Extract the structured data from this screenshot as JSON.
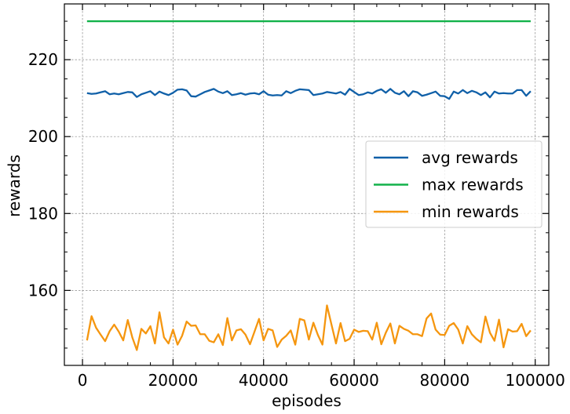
{
  "chart_data": {
    "type": "line",
    "xlabel": "episodes",
    "ylabel": "rewards",
    "xlim": [
      -4000,
      103000
    ],
    "ylim": [
      140.5,
      234.5
    ],
    "xticks": [
      0,
      20000,
      40000,
      60000,
      80000,
      100000
    ],
    "xtick_labels": [
      "0",
      "20000",
      "40000",
      "60000",
      "80000",
      "100000"
    ],
    "yticks": [
      160,
      180,
      200,
      220
    ],
    "ytick_labels": [
      "160",
      "180",
      "200",
      "220"
    ],
    "grid": true,
    "legend_position": "right",
    "x": [
      1000,
      2000,
      3000,
      4000,
      5000,
      6000,
      7000,
      8000,
      9000,
      10000,
      11000,
      12000,
      13000,
      14000,
      15000,
      16000,
      17000,
      18000,
      19000,
      20000,
      21000,
      22000,
      23000,
      24000,
      25000,
      26000,
      27000,
      28000,
      29000,
      30000,
      31000,
      32000,
      33000,
      34000,
      35000,
      36000,
      37000,
      38000,
      39000,
      40000,
      41000,
      42000,
      43000,
      44000,
      45000,
      46000,
      47000,
      48000,
      49000,
      50000,
      51000,
      52000,
      53000,
      54000,
      55000,
      56000,
      57000,
      58000,
      59000,
      60000,
      61000,
      62000,
      63000,
      64000,
      65000,
      66000,
      67000,
      68000,
      69000,
      70000,
      71000,
      72000,
      73000,
      74000,
      75000,
      76000,
      77000,
      78000,
      79000,
      80000,
      81000,
      82000,
      83000,
      84000,
      85000,
      86000,
      87000,
      88000,
      89000,
      90000,
      91000,
      92000,
      93000,
      94000,
      95000,
      96000,
      97000,
      98000,
      99000
    ],
    "series": [
      {
        "name": "avg rewards",
        "color": "#1060a8",
        "values": [
          211.3,
          211.1,
          211.2,
          211.5,
          211.8,
          211.0,
          211.2,
          211.0,
          211.3,
          211.6,
          211.5,
          210.3,
          211.0,
          211.4,
          211.8,
          210.8,
          211.7,
          211.2,
          210.8,
          211.4,
          212.2,
          212.3,
          212.0,
          210.5,
          210.4,
          211.0,
          211.6,
          212.0,
          212.4,
          211.7,
          211.3,
          211.8,
          210.8,
          211.0,
          211.3,
          210.9,
          211.2,
          211.3,
          211.0,
          211.8,
          210.9,
          210.7,
          210.8,
          210.7,
          211.8,
          211.3,
          211.9,
          212.3,
          212.2,
          212.1,
          210.8,
          211.0,
          211.2,
          211.6,
          211.4,
          211.2,
          211.6,
          210.9,
          212.4,
          211.6,
          210.8,
          211.0,
          211.5,
          211.2,
          211.9,
          212.3,
          211.4,
          212.4,
          211.4,
          211.0,
          211.8,
          210.5,
          211.8,
          211.5,
          210.6,
          210.9,
          211.3,
          211.7,
          210.6,
          210.5,
          209.8,
          211.7,
          211.2,
          212.1,
          211.3,
          211.9,
          211.5,
          210.8,
          211.5,
          210.2,
          211.7,
          211.2,
          211.3,
          211.2,
          211.2,
          212.1,
          212.1,
          210.6,
          211.8
        ]
      },
      {
        "name": "max rewards",
        "color": "#12b24a",
        "values": [
          230,
          230,
          230,
          230,
          230,
          230,
          230,
          230,
          230,
          230,
          230,
          230,
          230,
          230,
          230,
          230,
          230,
          230,
          230,
          230,
          230,
          230,
          230,
          230,
          230,
          230,
          230,
          230,
          230,
          230,
          230,
          230,
          230,
          230,
          230,
          230,
          230,
          230,
          230,
          230,
          230,
          230,
          230,
          230,
          230,
          230,
          230,
          230,
          230,
          230,
          230,
          230,
          230,
          230,
          230,
          230,
          230,
          230,
          230,
          230,
          230,
          230,
          230,
          230,
          230,
          230,
          230,
          230,
          230,
          230,
          230,
          230,
          230,
          230,
          230,
          230,
          230,
          230,
          230,
          230,
          230,
          230,
          230,
          230,
          230,
          230,
          230,
          230,
          230,
          230,
          230,
          230,
          230,
          230,
          230,
          230,
          230,
          230,
          230
        ]
      },
      {
        "name": "min rewards",
        "color": "#f5960f",
        "values": [
          147.0,
          153.3,
          150.3,
          148.5,
          146.8,
          149.4,
          151.1,
          149.3,
          147.0,
          152.3,
          147.8,
          144.5,
          150.0,
          148.8,
          150.7,
          146.2,
          154.3,
          147.8,
          146.2,
          149.8,
          145.9,
          148.2,
          151.9,
          150.8,
          150.9,
          148.6,
          148.6,
          146.9,
          146.5,
          148.6,
          145.8,
          152.8,
          147.0,
          149.6,
          149.9,
          148.5,
          146.0,
          149.3,
          152.6,
          147.0,
          150.0,
          149.6,
          145.3,
          147.2,
          148.2,
          149.6,
          145.9,
          152.6,
          152.2,
          147.2,
          151.6,
          148.4,
          145.9,
          156.1,
          151.1,
          146.2,
          151.5,
          146.8,
          147.4,
          149.8,
          149.2,
          149.5,
          149.4,
          147.2,
          151.6,
          146.0,
          149.0,
          151.4,
          146.2,
          150.8,
          150.0,
          149.5,
          148.6,
          148.6,
          148.1,
          152.7,
          154.0,
          149.8,
          148.5,
          148.4,
          150.8,
          151.5,
          149.8,
          146.2,
          150.7,
          148.6,
          147.4,
          146.5,
          153.2,
          149.0,
          146.9,
          152.4,
          145.2,
          149.9,
          149.3,
          149.4,
          151.3,
          148.1,
          149.6
        ]
      }
    ]
  }
}
